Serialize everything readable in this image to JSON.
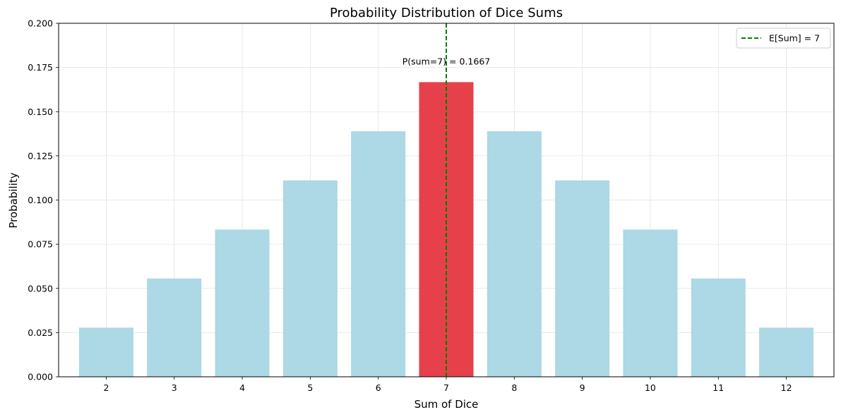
{
  "chart_data": {
    "type": "bar",
    "title": "Probability Distribution of Dice Sums",
    "xlabel": "Sum of Dice",
    "ylabel": "Probability",
    "categories": [
      "2",
      "3",
      "4",
      "5",
      "6",
      "7",
      "8",
      "9",
      "10",
      "11",
      "12"
    ],
    "values": [
      0.0278,
      0.0556,
      0.0833,
      0.1111,
      0.1389,
      0.1667,
      0.1389,
      0.1111,
      0.0833,
      0.0556,
      0.0278
    ],
    "highlight_category": "7",
    "ylim": [
      0,
      0.2
    ],
    "yticks": [
      "0.000",
      "0.025",
      "0.050",
      "0.075",
      "0.100",
      "0.125",
      "0.150",
      "0.175",
      "0.200"
    ],
    "grid": true,
    "bar_color": "#add8e6",
    "highlight_color": "#e6414a",
    "reference_line": {
      "x": 7,
      "label": "E[Sum] = 7",
      "color": "#008000",
      "style": "dashed"
    },
    "annotation": {
      "text": "P(sum=7) = 0.1667",
      "x": 7,
      "y": 0.175
    },
    "legend_position": "top-right"
  }
}
